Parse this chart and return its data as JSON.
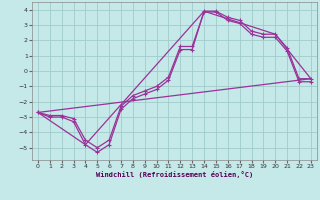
{
  "xlabel": "Windchill (Refroidissement éolien,°C)",
  "bg_color": "#c5e8e8",
  "line_color": "#993399",
  "grid_color": "#a0cccc",
  "line1_x": [
    0,
    1,
    2,
    3,
    4,
    5,
    6,
    7,
    8,
    9,
    10,
    11,
    12,
    13,
    14,
    15,
    16,
    17,
    18,
    19,
    20,
    21,
    22,
    23
  ],
  "line1_y": [
    -2.7,
    -3.0,
    -3.0,
    -3.3,
    -4.8,
    -5.3,
    -4.8,
    -2.5,
    -1.8,
    -1.5,
    -1.2,
    -0.6,
    1.4,
    1.4,
    3.9,
    3.9,
    3.5,
    3.3,
    2.6,
    2.4,
    2.4,
    1.5,
    -0.5,
    -0.5
  ],
  "line2_x": [
    0,
    1,
    2,
    3,
    4,
    5,
    6,
    7,
    8,
    9,
    10,
    11,
    12,
    13,
    14,
    15,
    16,
    17,
    18,
    19,
    20,
    21,
    22,
    23
  ],
  "line2_y": [
    -2.7,
    -2.9,
    -2.9,
    -3.1,
    -4.5,
    -5.0,
    -4.5,
    -2.3,
    -1.6,
    -1.3,
    -1.0,
    -0.4,
    1.6,
    1.6,
    3.85,
    3.85,
    3.3,
    3.1,
    2.4,
    2.2,
    2.2,
    1.3,
    -0.7,
    -0.7
  ],
  "line3_x": [
    0,
    23
  ],
  "line3_y": [
    -2.7,
    -0.5
  ],
  "line4_x": [
    0,
    4,
    14,
    20,
    23
  ],
  "line4_y": [
    -2.7,
    -4.8,
    3.9,
    2.4,
    -0.5
  ],
  "xlim": [
    -0.5,
    23.5
  ],
  "ylim": [
    -5.8,
    4.5
  ],
  "xticks": [
    0,
    1,
    2,
    3,
    4,
    5,
    6,
    7,
    8,
    9,
    10,
    11,
    12,
    13,
    14,
    15,
    16,
    17,
    18,
    19,
    20,
    21,
    22,
    23
  ],
  "yticks": [
    -5,
    -4,
    -3,
    -2,
    -1,
    0,
    1,
    2,
    3,
    4
  ]
}
